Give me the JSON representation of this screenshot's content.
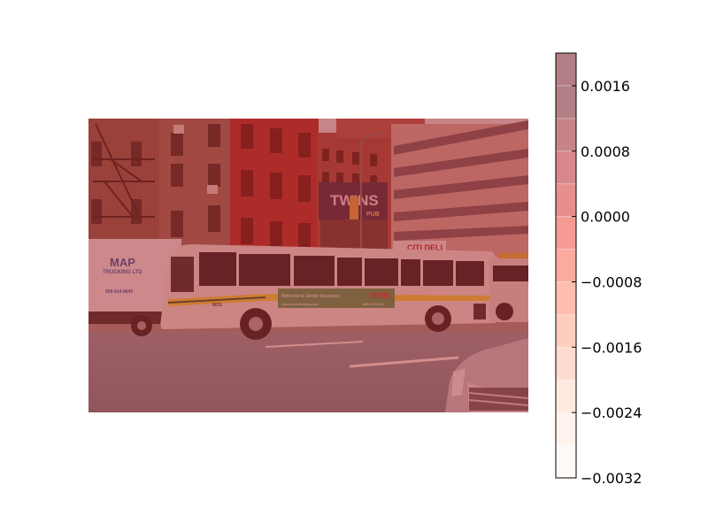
{
  "chart_data": {
    "type": "heatmap",
    "title": "",
    "xlabel": "",
    "ylabel": "",
    "colormap": "Reds",
    "overlay_alpha": 0.5,
    "colorbar": {
      "orientation": "vertical",
      "location": "right",
      "range": [
        -0.0032,
        0.002
      ],
      "levels": [
        -0.0032,
        -0.0028,
        -0.0024,
        -0.002,
        -0.0016,
        -0.0012,
        -0.0008,
        -0.0004,
        0.0,
        0.0004,
        0.0008,
        0.0012,
        0.0016,
        0.002
      ],
      "tick_values": [
        -0.0032,
        -0.0024,
        -0.0016,
        -0.0008,
        0.0,
        0.0008,
        0.0016
      ],
      "tick_labels": [
        "−0.0032",
        "−0.0024",
        "−0.0016",
        "−0.0008",
        "0.0000",
        "0.0008",
        "0.0016"
      ],
      "band_colors": [
        "#fff5f0",
        "#fee7dc",
        "#fdd5c1",
        "#fcbaa0",
        "#fc9c7d",
        "#fb7d5d",
        "#f6583e",
        "#eb372a",
        "#d01d1f",
        "#b11218",
        "#8f0a12",
        "#67000d",
        "#67000d"
      ]
    },
    "overlay_color": "#b42828"
  },
  "photo": {
    "truck_text": "MAP",
    "truck_sub": "TRUCKING LTD",
    "truck_phone": "908-654-8840",
    "marquee_text": "TWINS",
    "marquee_sub": "PUB",
    "deli_sign": "CITI DELI",
    "bus_number": "6031",
    "bus_ad_text": "Welcome to Senior Insurance",
    "bus_ad_url": "www.seniorfunding.com",
    "bus_ad_phone": "888.733.6104",
    "bus_ad_brand": "MMM"
  }
}
